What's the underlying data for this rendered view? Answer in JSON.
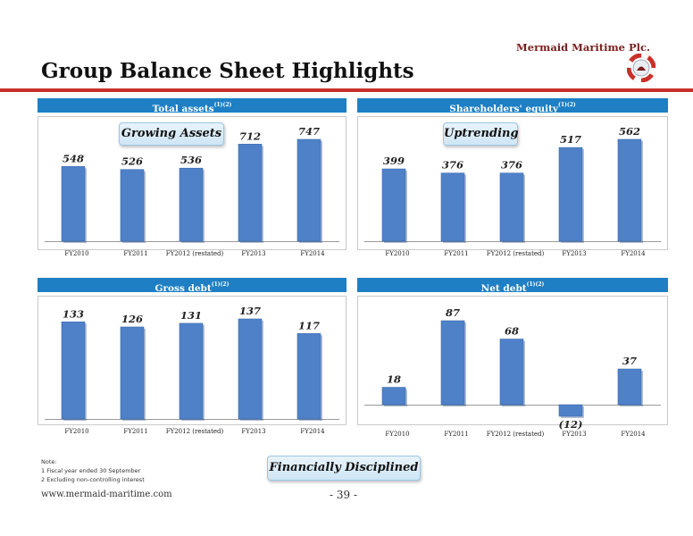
{
  "header": {
    "brand": "Mermaid Maritime Plc.",
    "title": "Group Balance Sheet Highlights"
  },
  "colors": {
    "accent_red": "#c8302a",
    "header_blue": "#1e7fc4",
    "bar_blue": "#4f81c8"
  },
  "panels": [
    {
      "title": "Total assets",
      "sup": "(1)(2)"
    },
    {
      "title": "Shareholders' equity",
      "sup": "(1)(2)"
    },
    {
      "title": "Gross debt",
      "sup": "(1)(2)"
    },
    {
      "title": "Net debt",
      "sup": "(1)(2)"
    }
  ],
  "badges": {
    "assets": "Growing Assets",
    "equity": "Uptrending",
    "disciplined": "Financially Disciplined"
  },
  "chart_data": [
    {
      "type": "bar",
      "categories": [
        "FY2010",
        "FY2011",
        "FY2012 (restated)",
        "FY2013",
        "FY2014"
      ],
      "values": [
        548,
        526,
        536,
        712,
        747
      ],
      "labels": [
        "548",
        "526",
        "536",
        "712",
        "747"
      ],
      "ylim": [
        0,
        800
      ]
    },
    {
      "type": "bar",
      "categories": [
        "FY2010",
        "FY2011",
        "FY2012 (restated)",
        "FY2013",
        "FY2014"
      ],
      "values": [
        399,
        376,
        376,
        517,
        562
      ],
      "labels": [
        "399",
        "376",
        "376",
        "517",
        "562"
      ],
      "ylim": [
        0,
        600
      ]
    },
    {
      "type": "bar",
      "categories": [
        "FY2010",
        "FY2011",
        "FY2012 (restated)",
        "FY2013",
        "FY2014"
      ],
      "values": [
        133,
        126,
        131,
        137,
        117
      ],
      "labels": [
        "133",
        "126",
        "131",
        "137",
        "117"
      ],
      "ylim": [
        0,
        150
      ]
    },
    {
      "type": "bar",
      "categories": [
        "FY2010",
        "FY2011",
        "FY2012 (restated)",
        "FY2013",
        "FY2014"
      ],
      "values": [
        18,
        87,
        68,
        -12,
        37
      ],
      "labels": [
        "18",
        "87",
        "68",
        "(12)",
        "37"
      ],
      "ylim": [
        -15,
        100
      ]
    }
  ],
  "notes": {
    "heading": "Note:",
    "items": [
      "1 Fiscal year ended 30 September",
      "2 Excluding non-controlling interest"
    ]
  },
  "footer": {
    "url": "www.mermaid-maritime.com",
    "page": "- 39 -"
  }
}
